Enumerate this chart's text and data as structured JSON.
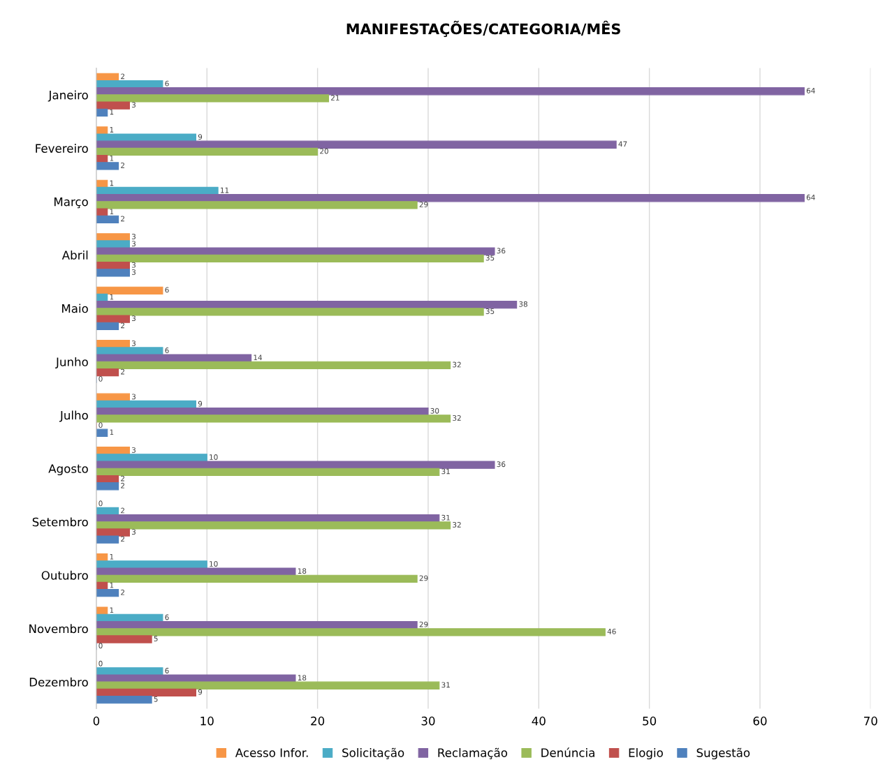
{
  "chart_data": {
    "type": "bar",
    "orientation": "horizontal",
    "title": "MANIFESTAÇÕES/CATEGORIA/MÊS",
    "categories": [
      "Janeiro",
      "Fevereiro",
      "Março",
      "Abril",
      "Maio",
      "Junho",
      "Julho",
      "Agosto",
      "Setembro",
      "Outubro",
      "Novembro",
      "Dezembro"
    ],
    "series": [
      {
        "name": "Acesso Infor.",
        "color": "#f79646",
        "values": [
          2,
          1,
          1,
          3,
          6,
          3,
          3,
          3,
          0,
          1,
          1,
          0
        ]
      },
      {
        "name": "Solicitação",
        "color": "#4bacc6",
        "values": [
          6,
          9,
          11,
          3,
          1,
          6,
          9,
          10,
          2,
          10,
          6,
          6
        ]
      },
      {
        "name": "Reclamação",
        "color": "#8064a2",
        "values": [
          64,
          47,
          64,
          36,
          38,
          14,
          30,
          36,
          31,
          18,
          29,
          18
        ]
      },
      {
        "name": "Denúncia",
        "color": "#9bbb59",
        "values": [
          21,
          20,
          29,
          35,
          35,
          32,
          32,
          31,
          32,
          29,
          46,
          31
        ]
      },
      {
        "name": "Elogio",
        "color": "#c0504d",
        "values": [
          3,
          1,
          1,
          3,
          3,
          2,
          0,
          2,
          3,
          1,
          5,
          9
        ]
      },
      {
        "name": "Sugestão",
        "color": "#4f81bd",
        "values": [
          1,
          2,
          2,
          3,
          2,
          0,
          1,
          2,
          2,
          2,
          0,
          5
        ]
      }
    ],
    "xlim": [
      0,
      70
    ],
    "xticks": [
      0,
      10,
      20,
      30,
      40,
      50,
      60,
      70
    ],
    "grid": "x",
    "legend": "bottom",
    "data_labels": true
  }
}
